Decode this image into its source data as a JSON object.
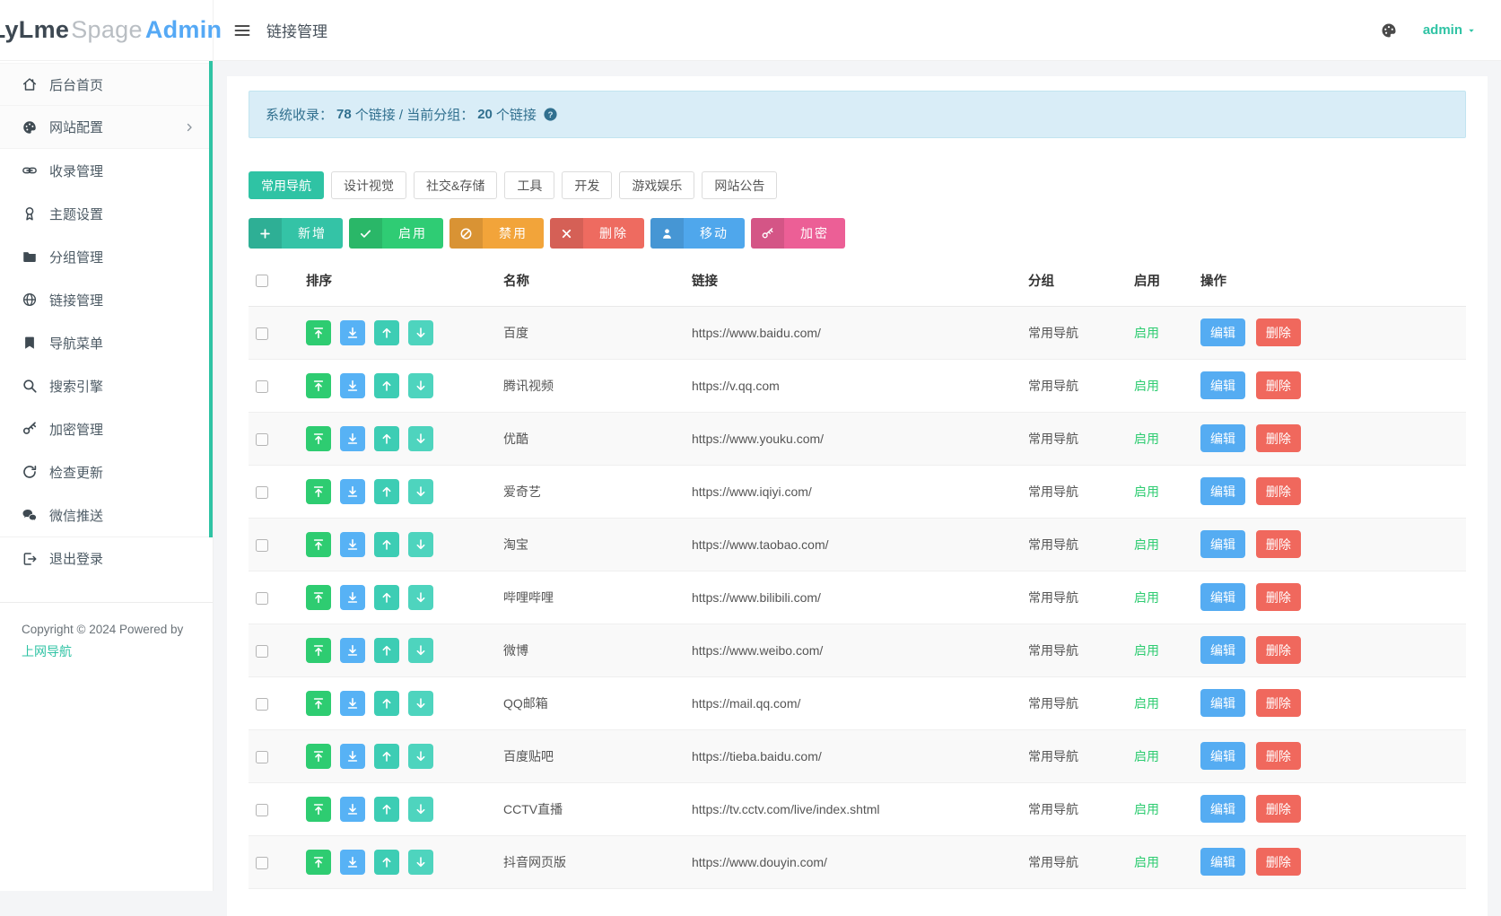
{
  "brand": {
    "part1": "LyLme",
    "part2": "Spage",
    "part3": "Admin"
  },
  "topbar": {
    "title": "链接管理",
    "user": "admin",
    "menu_icon": "hamburger-icon",
    "theme_icon": "palette-icon",
    "caret_icon": "caret-down-icon"
  },
  "sidebar": {
    "chevron_icon": "chevron-right-icon",
    "items": [
      {
        "label": "后台首页",
        "icon": "home-icon"
      },
      {
        "label": "网站配置",
        "icon": "palette-icon",
        "chevron": true
      },
      {
        "label": "收录管理",
        "icon": "link-icon"
      },
      {
        "label": "主题设置",
        "icon": "award-icon"
      },
      {
        "label": "分组管理",
        "icon": "folder-icon"
      },
      {
        "label": "链接管理",
        "icon": "globe-icon"
      },
      {
        "label": "导航菜单",
        "icon": "bookmark-icon"
      },
      {
        "label": "搜索引擎",
        "icon": "search-icon"
      },
      {
        "label": "加密管理",
        "icon": "key-icon"
      },
      {
        "label": "检查更新",
        "icon": "refresh-icon"
      },
      {
        "label": "微信推送",
        "icon": "wechat-icon"
      },
      {
        "label": "退出登录",
        "icon": "logout-icon"
      }
    ],
    "footer": {
      "copyright": "Copyright © 2024 Powered by",
      "link": "上网导航"
    }
  },
  "alert": {
    "prefix": "系统收录：",
    "count_total": "78",
    "middle": "个链接 / 当前分组：",
    "count_group": "20",
    "suffix": "个链接",
    "help_icon": "question-circle-icon"
  },
  "tabs": [
    {
      "label": "常用导航",
      "active": true
    },
    {
      "label": "设计视觉"
    },
    {
      "label": "社交&存储"
    },
    {
      "label": "工具"
    },
    {
      "label": "开发"
    },
    {
      "label": "游戏娱乐"
    },
    {
      "label": "网站公告"
    }
  ],
  "actions": [
    {
      "label": "新增",
      "icon": "plus-icon",
      "color": "#34C3A6"
    },
    {
      "label": "启用",
      "icon": "check-icon",
      "color": "#2FCC74"
    },
    {
      "label": "禁用",
      "icon": "ban-icon",
      "color": "#F2A43A"
    },
    {
      "label": "删除",
      "icon": "x-icon",
      "color": "#EE6B60"
    },
    {
      "label": "移动",
      "icon": "user-icon",
      "color": "#4FA7EC"
    },
    {
      "label": "加密",
      "icon": "key-icon",
      "color": "#EC5F96"
    }
  ],
  "table": {
    "headers": [
      "排序",
      "名称",
      "链接",
      "分组",
      "启用",
      "操作"
    ],
    "sort_icons": [
      "move-top-icon",
      "move-bottom-icon",
      "move-up-icon",
      "move-down-icon"
    ],
    "sort_colors": [
      "#2ECC71",
      "#57B2F5",
      "#3DCDB4",
      "#4ED4BE"
    ],
    "edit_label": "编辑",
    "delete_label": "删除",
    "rows": [
      {
        "name": "百度",
        "url": "https://www.baidu.com/",
        "group": "常用导航",
        "status": "启用"
      },
      {
        "name": "腾讯视频",
        "url": "https://v.qq.com",
        "group": "常用导航",
        "status": "启用"
      },
      {
        "name": "优酷",
        "url": "https://www.youku.com/",
        "group": "常用导航",
        "status": "启用"
      },
      {
        "name": "爱奇艺",
        "url": "https://www.iqiyi.com/",
        "group": "常用导航",
        "status": "启用"
      },
      {
        "name": "淘宝",
        "url": "https://www.taobao.com/",
        "group": "常用导航",
        "status": "启用"
      },
      {
        "name": "哔哩哔哩",
        "url": "https://www.bilibili.com/",
        "group": "常用导航",
        "status": "启用"
      },
      {
        "name": "微博",
        "url": "https://www.weibo.com/",
        "group": "常用导航",
        "status": "启用"
      },
      {
        "name": "QQ邮箱",
        "url": "https://mail.qq.com/",
        "group": "常用导航",
        "status": "启用"
      },
      {
        "name": "百度贴吧",
        "url": "https://tieba.baidu.com/",
        "group": "常用导航",
        "status": "启用"
      },
      {
        "name": "CCTV直播",
        "url": "https://tv.cctv.com/live/index.shtml",
        "group": "常用导航",
        "status": "启用"
      },
      {
        "name": "抖音网页版",
        "url": "https://www.douyin.com/",
        "group": "常用导航",
        "status": "启用"
      }
    ]
  },
  "colors": {
    "teal": "#2FC3A4",
    "green": "#2ECC71",
    "blue": "#55ACF2",
    "orange": "#F2A43A",
    "red": "#F0685D",
    "pink": "#EC5F96",
    "alert_bg": "#D9EDF7",
    "alert_border": "#C2E4F0",
    "alert_text": "#31708F",
    "page_bg": "#F4F5F7"
  }
}
